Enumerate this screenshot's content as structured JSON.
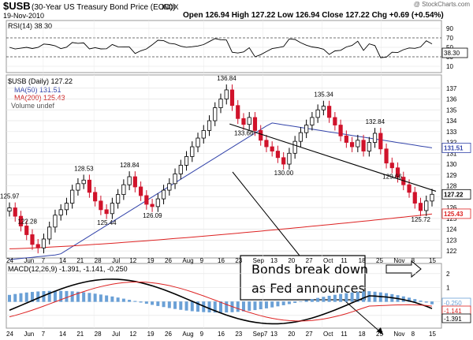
{
  "header": {
    "symbol": "$USB",
    "description": "(30-Year US Treasury Bond Price (EOD))",
    "exchange": "INDX",
    "date": "19-Nov-2010",
    "ohlc_text": "Open 126.94  High 127.22  Low 126.94  Close 127.22  Chg +0.69 (+0.54%)",
    "watermark": "@ StockCharts.com"
  },
  "rsi": {
    "label": "RSI(14) 38.30",
    "axis": [
      "90",
      "70",
      "50",
      "30",
      "10"
    ],
    "current_tag": "38.30"
  },
  "price_panel": {
    "legend": [
      "$USB (Daily) 127.22",
      "MA(50) 131.51",
      "MA(200) 125.43",
      "Volume undef"
    ],
    "y_ticks": [
      "137",
      "136",
      "135",
      "134",
      "133",
      "132",
      "131",
      "130",
      "129",
      "128",
      "127",
      "126",
      "125",
      "124",
      "123",
      "122"
    ],
    "price_tag": "127.22",
    "ma50_tag": "131.51",
    "ma200_tag": "125.43"
  },
  "macd": {
    "label": "MACD(12,26,9) -1.391, -1.141, -0.250",
    "axis": [
      "2",
      "1",
      "0",
      "-1"
    ],
    "tags": [
      "-0.250",
      "-1.141",
      "-1.391"
    ]
  },
  "x_axis": {
    "mid_labels": [
      "24",
      "Jun",
      "7",
      "14",
      "21",
      "28",
      "Jul",
      "12",
      "19",
      "26",
      "Aug",
      "9",
      "16",
      "23",
      "Sep",
      "13",
      "20",
      "27",
      "Oct",
      "11",
      "18",
      "25",
      "Nov",
      "8",
      "15"
    ],
    "bottom_labels": [
      "24",
      "Jun",
      "7",
      "14",
      "21",
      "28",
      "Jul",
      "12",
      "19",
      "26",
      "Aug",
      "9",
      "16",
      "23",
      "Sep7",
      "13",
      "20",
      "27",
      "Oct",
      "11",
      "18",
      "25",
      "Nov",
      "8",
      "15"
    ]
  },
  "annotation": {
    "text_line1": "Bonds break down",
    "text_line2": "as Fed announces"
  },
  "chart_data": {
    "type": "candlestick",
    "title": "$USB (30-Year US Treasury Bond Price (EOD))",
    "ylabel": "",
    "ylim": [
      121.5,
      138
    ],
    "annotations": [
      "122.28",
      "125.97",
      "128.53",
      "125.44",
      "128.84",
      "126.09",
      "136.84",
      "133.66",
      "130.00",
      "135.34",
      "132.84",
      "129.66",
      "125.72"
    ],
    "series": [
      {
        "name": "$USB (Daily)",
        "closes": [
          125.97,
          125.2,
          124.3,
          123.5,
          122.6,
          122.28,
          123.1,
          124.2,
          125.3,
          125.8,
          126.4,
          127.6,
          128.2,
          128.53,
          127.4,
          126.6,
          125.8,
          125.44,
          126.4,
          127.2,
          128.1,
          128.84,
          127.9,
          127.1,
          126.3,
          126.09,
          126.8,
          127.6,
          128.2,
          129.1,
          129.9,
          130.7,
          131.6,
          132.4,
          133.1,
          134.0,
          135.2,
          136.0,
          136.84,
          135.4,
          134.2,
          133.66,
          134.3,
          133.1,
          132.2,
          131.6,
          131.2,
          130.6,
          130.0,
          131.0,
          132.1,
          132.9,
          133.6,
          134.3,
          135.0,
          135.34,
          134.3,
          133.6,
          132.6,
          132.0,
          131.6,
          132.2,
          131.2,
          132.0,
          132.84,
          131.4,
          130.1,
          129.66,
          128.8,
          128.1,
          127.4,
          126.4,
          125.72,
          126.6,
          127.22
        ]
      },
      {
        "name": "MA(50)",
        "values": [
          null,
          "…",
          "131.51"
        ]
      },
      {
        "name": "MA(200)",
        "values": [
          null,
          "…",
          "125.43"
        ]
      }
    ],
    "indicators": {
      "RSI(14)": 38.3,
      "MACD": -1.391,
      "Signal": -1.141,
      "Histogram": -0.25
    }
  }
}
